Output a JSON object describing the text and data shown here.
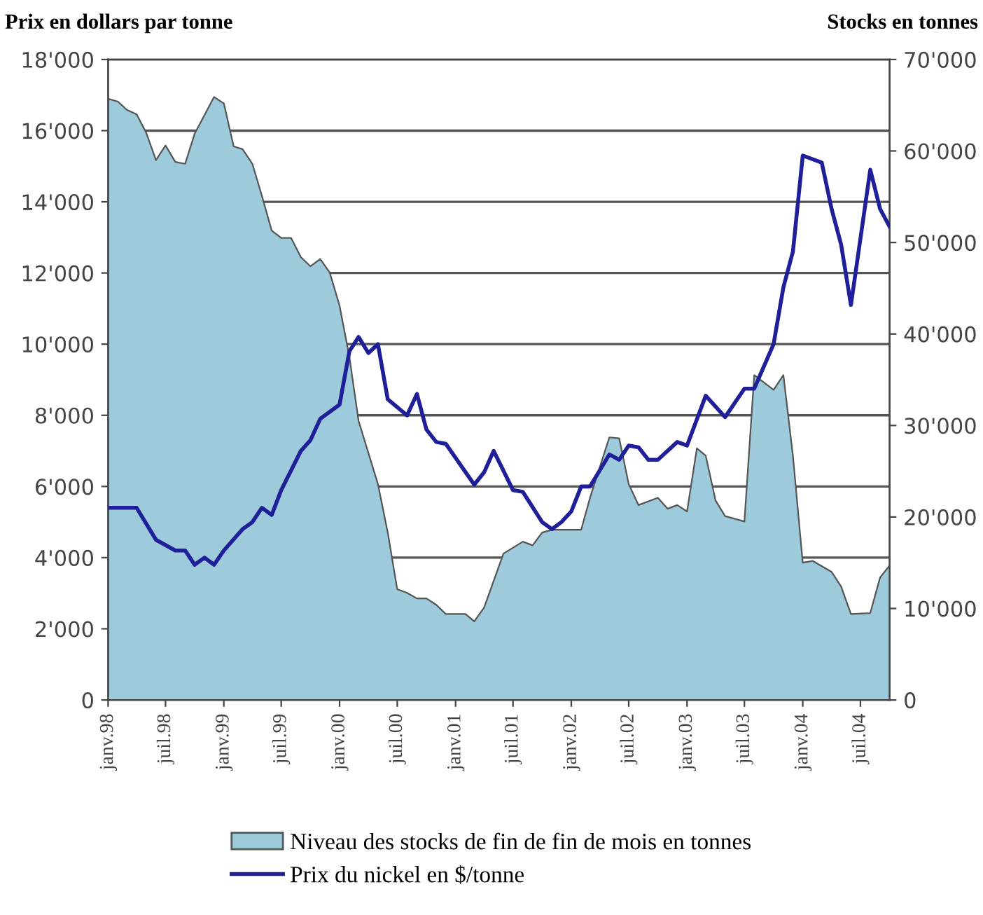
{
  "chart_data": {
    "type": "area",
    "ylabel": "Prix en dollars par tonne",
    "y2label": "Stocks en tonnes",
    "xlim": [
      "1998-01",
      "2004-10"
    ],
    "xticks": [
      {
        "value": "1998-01",
        "label": "janv.98"
      },
      {
        "value": "1998-07",
        "label": "juil.98"
      },
      {
        "value": "1999-01",
        "label": "janv.99"
      },
      {
        "value": "1999-07",
        "label": "juil.99"
      },
      {
        "value": "2000-01",
        "label": "janv.00"
      },
      {
        "value": "2000-07",
        "label": "juil.00"
      },
      {
        "value": "2001-01",
        "label": "janv.01"
      },
      {
        "value": "2001-07",
        "label": "juil.01"
      },
      {
        "value": "2002-01",
        "label": "janv.02"
      },
      {
        "value": "2002-07",
        "label": "juil.02"
      },
      {
        "value": "2003-01",
        "label": "janv.03"
      },
      {
        "value": "2003-07",
        "label": "juil.03"
      },
      {
        "value": "2004-01",
        "label": "janv.04"
      },
      {
        "value": "2004-07",
        "label": "juil.04"
      }
    ],
    "ylim": [
      0,
      18000
    ],
    "yticks": [
      0,
      {
        "value": 2000,
        "label": "2'000"
      },
      {
        "value": 4000,
        "label": "4'000"
      },
      {
        "value": 6000,
        "label": "6'000"
      },
      {
        "value": 8000,
        "label": "8'000"
      },
      {
        "value": 10000,
        "label": "10'000"
      },
      {
        "value": 12000,
        "label": "12'000"
      },
      {
        "value": 14000,
        "label": "14'000"
      },
      {
        "value": 16000,
        "label": "16'000"
      },
      {
        "value": 18000,
        "label": "18'000"
      }
    ],
    "y2lim": [
      0,
      70000
    ],
    "y2ticks": [
      0,
      {
        "value": 10000,
        "label": "10'000"
      },
      {
        "value": 20000,
        "label": "20'000"
      },
      {
        "value": 30000,
        "label": "30'000"
      },
      {
        "value": 40000,
        "label": "40'000"
      },
      {
        "value": 50000,
        "label": "50'000"
      },
      {
        "value": 60000,
        "label": "60'000"
      },
      {
        "value": 70000,
        "label": "70'000"
      }
    ],
    "grid": "y",
    "legend": "bottom",
    "series": [
      {
        "name": "Niveau des stocks de fin de fin de mois en tonnes",
        "axis": "y2",
        "color": "#9dcbdc",
        "x": [
          "1998-01",
          "1998-02",
          "1998-03",
          "1998-04",
          "1998-05",
          "1998-06",
          "1998-07",
          "1998-08",
          "1998-09",
          "1998-10",
          "1998-12",
          "1999-01",
          "1999-02",
          "1999-03",
          "1999-04",
          "1999-05",
          "1999-06",
          "1999-07",
          "1999-08",
          "1999-09",
          "1999-10",
          "1999-11",
          "1999-12",
          "2000-01",
          "2000-02",
          "2000-03",
          "2000-05",
          "2000-06",
          "2000-07",
          "2000-08",
          "2000-09",
          "2000-10",
          "2000-11",
          "2000-12",
          "2001-02",
          "2001-03",
          "2001-04",
          "2001-06",
          "2001-08",
          "2001-09",
          "2001-10",
          "2001-11",
          "2002-02",
          "2002-03",
          "2002-05",
          "2002-06",
          "2002-07",
          "2002-08",
          "2002-10",
          "2002-11",
          "2002-12",
          "2003-01",
          "2003-02",
          "2003-03",
          "2003-04",
          "2003-05",
          "2003-07",
          "2003-08",
          "2003-10",
          "2003-11",
          "2003-12",
          "2004-01",
          "2004-02",
          "2004-04",
          "2004-05",
          "2004-06",
          "2004-08",
          "2004-09",
          "2004-10"
        ],
        "values": [
          65700,
          65400,
          64500,
          64000,
          62000,
          59000,
          60600,
          58800,
          58600,
          61900,
          65900,
          65200,
          60500,
          60200,
          58600,
          55100,
          51300,
          50500,
          50500,
          48400,
          47400,
          48200,
          46700,
          43100,
          37500,
          30500,
          23600,
          18300,
          12100,
          11700,
          11100,
          11100,
          10400,
          9400,
          9400,
          8600,
          10100,
          16000,
          17300,
          16900,
          18300,
          18600,
          18600,
          22100,
          28700,
          28600,
          23600,
          21300,
          22100,
          20900,
          21300,
          20600,
          27500,
          26700,
          21800,
          20100,
          19500,
          35500,
          33900,
          35500,
          26700,
          15000,
          15200,
          14000,
          12400,
          9400,
          9500,
          13400,
          14700
        ]
      },
      {
        "name": "Prix du nickel en $/tonne",
        "type": "line",
        "axis": "y",
        "color": "#1f1f99",
        "x": [
          "1998-01",
          "1998-04",
          "1998-06",
          "1998-08",
          "1998-09",
          "1998-10",
          "1998-11",
          "1998-12",
          "1999-01",
          "1999-03",
          "1999-04",
          "1999-05",
          "1999-06",
          "1999-07",
          "1999-09",
          "1999-10",
          "1999-11",
          "2000-01",
          "2000-02",
          "2000-03",
          "2000-04",
          "2000-05",
          "2000-06",
          "2000-08",
          "2000-09",
          "2000-10",
          "2000-11",
          "2000-12",
          "2001-03",
          "2001-04",
          "2001-05",
          "2001-07",
          "2001-08",
          "2001-10",
          "2001-11",
          "2001-12",
          "2002-01",
          "2002-02",
          "2002-03",
          "2002-05",
          "2002-06",
          "2002-07",
          "2002-08",
          "2002-09",
          "2002-10",
          "2002-12",
          "2003-01",
          "2003-03",
          "2003-05",
          "2003-07",
          "2003-08",
          "2003-10",
          "2003-11",
          "2003-12",
          "2004-01",
          "2004-03",
          "2004-04",
          "2004-05",
          "2004-06",
          "2004-08",
          "2004-09",
          "2004-10"
        ],
        "values": [
          5400,
          5400,
          4500,
          4200,
          4200,
          3800,
          4000,
          3800,
          4200,
          4800,
          5000,
          5400,
          5200,
          5900,
          7000,
          7300,
          7900,
          8300,
          9800,
          10200,
          9750,
          10000,
          8450,
          8000,
          8600,
          7600,
          7250,
          7200,
          6050,
          6400,
          7000,
          5900,
          5850,
          5000,
          4800,
          5000,
          5300,
          6000,
          6000,
          6900,
          6750,
          7150,
          7100,
          6750,
          6750,
          7250,
          7150,
          8550,
          7950,
          8750,
          8750,
          10000,
          11600,
          12600,
          15300,
          15100,
          13800,
          12800,
          11100,
          14900,
          13800,
          13300
        ]
      }
    ]
  }
}
